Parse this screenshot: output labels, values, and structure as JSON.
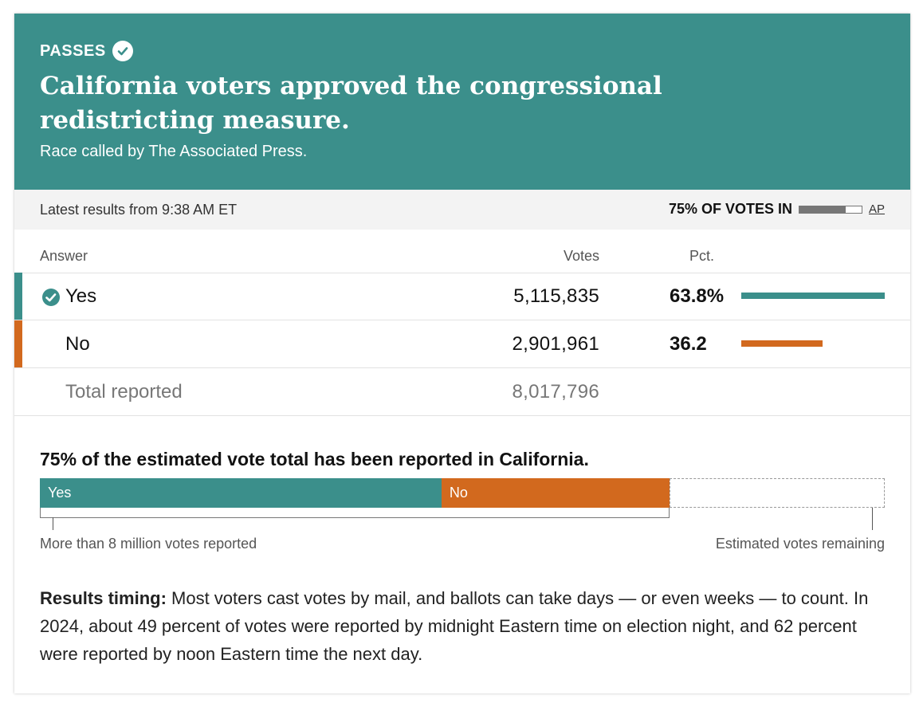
{
  "header": {
    "status": "PASSES",
    "headline": "California voters approved the congressional redistricting measure.",
    "called_by": "Race called by The Associated Press.",
    "bg_color": "#3b8f8b"
  },
  "status_bar": {
    "latest": "Latest results from 9:38 AM ET",
    "votes_in_label": "75% OF VOTES IN",
    "votes_in_fraction": 0.75,
    "source": "AP"
  },
  "table": {
    "headers": {
      "answer": "Answer",
      "votes": "Votes",
      "pct": "Pct."
    },
    "rows": [
      {
        "answer": "Yes",
        "votes": "5,115,835",
        "pct": "63.8%",
        "pct_value": 63.8,
        "color": "#3b8f8b",
        "winner": true
      },
      {
        "answer": "No",
        "votes": "2,901,961",
        "pct": "36.2",
        "pct_value": 36.2,
        "color": "#d2691e",
        "winner": false
      }
    ],
    "total": {
      "label": "Total reported",
      "votes": "8,017,796"
    }
  },
  "estimate": {
    "summary": "75% of the estimated vote total has been reported in California.",
    "reported_fraction": 0.745,
    "segments": [
      {
        "label": "Yes",
        "share": 0.638,
        "color": "#3b8f8b"
      },
      {
        "label": "No",
        "share": 0.362,
        "color": "#d2691e"
      }
    ],
    "left_note": "More than 8 million votes reported",
    "right_note": "Estimated votes remaining"
  },
  "timing": {
    "label": "Results timing:",
    "text": " Most voters cast votes by mail, and ballots can take days — or even weeks — to count. In 2024, about 49 percent of votes were reported by midnight Eastern time on election night, and 62 percent were reported by noon Eastern time the next day."
  }
}
